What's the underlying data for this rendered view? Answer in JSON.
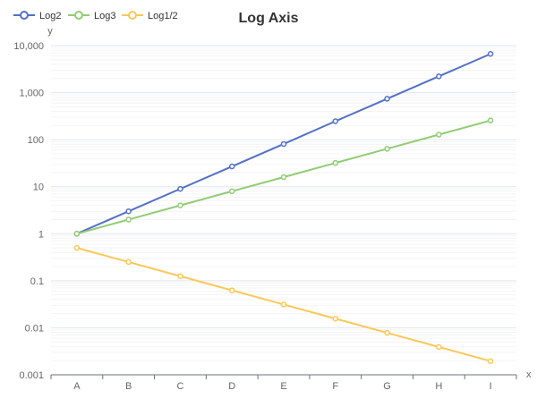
{
  "chart_data": {
    "type": "line",
    "title": "Log Axis",
    "xlabel": "x",
    "ylabel": "y",
    "y_scale": "log",
    "ylim": [
      0.001,
      10000
    ],
    "categories": [
      "A",
      "B",
      "C",
      "D",
      "E",
      "F",
      "G",
      "H",
      "I"
    ],
    "y_ticks": [
      {
        "value": 0.001,
        "label": "0.001"
      },
      {
        "value": 0.01,
        "label": "0.01"
      },
      {
        "value": 0.1,
        "label": "0.1"
      },
      {
        "value": 1,
        "label": "1"
      },
      {
        "value": 10,
        "label": "10"
      },
      {
        "value": 100,
        "label": "100"
      },
      {
        "value": 1000,
        "label": "1,000"
      },
      {
        "value": 10000,
        "label": "10,000"
      }
    ],
    "grid": true,
    "legend_position": "top-left",
    "series": [
      {
        "name": "Log2",
        "color": "#5470c6",
        "values": [
          1,
          3,
          9,
          27,
          81,
          247,
          741,
          2223,
          6669
        ]
      },
      {
        "name": "Log3",
        "color": "#91cc75",
        "values": [
          1,
          2,
          4,
          8,
          16,
          32,
          64,
          128,
          256
        ]
      },
      {
        "name": "Log1/2",
        "color": "#fac858",
        "values": [
          0.5,
          0.25,
          0.125,
          0.0625,
          0.03125,
          0.015625,
          0.0078125,
          0.00390625,
          0.001953125
        ]
      }
    ]
  }
}
